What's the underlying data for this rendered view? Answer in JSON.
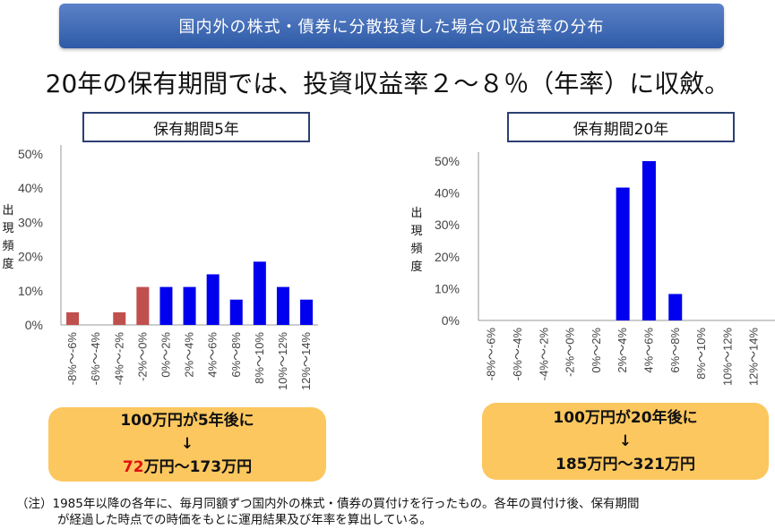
{
  "banner": "国内外の株式・債券に分散投資した場合の収益率の分布",
  "headline": "20年の保有期間では、投資収益率２～８％（年率）に収斂。",
  "y_axis_label": [
    "出",
    "現",
    "頻",
    "度"
  ],
  "colors": {
    "negative": "#c0504d",
    "positive": "#0000ee",
    "banner": "#3d67b4",
    "result_box": "#fcc75f"
  },
  "chart_data": [
    {
      "type": "bar",
      "title": "保有期間5年",
      "categories": [
        "-8%～-6%",
        "-6%～-4%",
        "-4%～-2%",
        "-2%～0%",
        "0%～2%",
        "2%～4%",
        "4%～6%",
        "6%～8%",
        "8%～10%",
        "10%～12%",
        "12%～14%"
      ],
      "values": [
        3.7,
        0,
        3.7,
        11.1,
        11.1,
        11.1,
        14.8,
        7.4,
        18.5,
        11.1,
        7.4
      ],
      "bar_colors": [
        "#c0504d",
        "#c0504d",
        "#c0504d",
        "#c0504d",
        "#0000ee",
        "#0000ee",
        "#0000ee",
        "#0000ee",
        "#0000ee",
        "#0000ee",
        "#0000ee"
      ],
      "ylabel": "出現頻度",
      "ylim": [
        0,
        50
      ],
      "yticks": [
        "0%",
        "10%",
        "20%",
        "30%",
        "40%",
        "50%"
      ],
      "grid": false
    },
    {
      "type": "bar",
      "title": "保有期間20年",
      "categories": [
        "-8%～-6%",
        "-6%～-4%",
        "-4%～-2%",
        "-2%～0%",
        "0%～2%",
        "2%～4%",
        "4%～6%",
        "6%～8%",
        "8%～10%",
        "10%～12%",
        "12%～14%"
      ],
      "values": [
        0,
        0,
        0,
        0,
        0,
        41.7,
        50.0,
        8.3,
        0,
        0,
        0
      ],
      "bar_colors": [
        "#0000ee",
        "#0000ee",
        "#0000ee",
        "#0000ee",
        "#0000ee",
        "#0000ee",
        "#0000ee",
        "#0000ee",
        "#0000ee",
        "#0000ee",
        "#0000ee"
      ],
      "ylabel": "出現頻度",
      "ylim": [
        0,
        50
      ],
      "yticks": [
        "0%",
        "10%",
        "20%",
        "30%",
        "40%",
        "50%"
      ],
      "grid": false
    }
  ],
  "results": [
    {
      "line1": "100万円が5年後に",
      "arrow": "↓",
      "low": "72",
      "range_rest": "万円～173万円"
    },
    {
      "line1": "100万円が20年後に",
      "arrow": "↓",
      "low": "185",
      "range_rest": "万円～321万円"
    }
  ],
  "note": [
    "（注）1985年以降の各年に、毎月同額ずつ国内外の株式・債券の買付けを行ったもの。各年の買付け後、保有期間",
    "が経過した時点での時価をもとに運用結果及び年率を算出している。"
  ]
}
